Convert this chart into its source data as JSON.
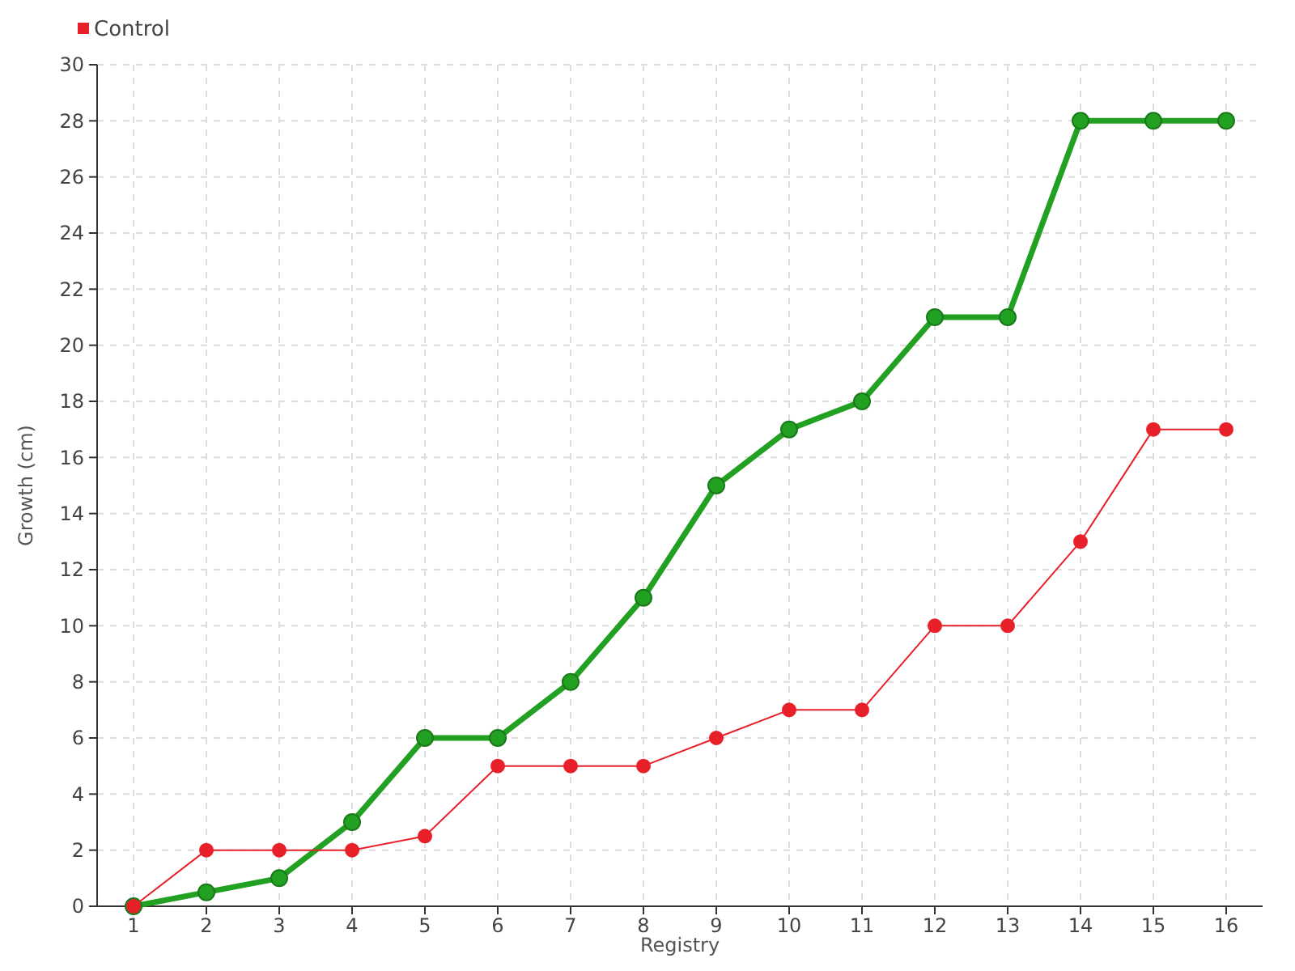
{
  "chart_data": {
    "type": "line",
    "xlabel": "Registry",
    "ylabel": "Growth (cm)",
    "categories": [
      "1",
      "2",
      "3",
      "4",
      "5",
      "6",
      "7",
      "8",
      "9",
      "10",
      "11",
      "12",
      "13",
      "14",
      "15",
      "16"
    ],
    "series": [
      {
        "color": "#22a022",
        "values": [
          0,
          0.5,
          1,
          3,
          6,
          6,
          8,
          11,
          15,
          17,
          18,
          21,
          21,
          28,
          28,
          28
        ]
      },
      {
        "name": "Control",
        "color": "#e8202a",
        "values": [
          0,
          2,
          2,
          2,
          2.5,
          5,
          5,
          5,
          6,
          7,
          7,
          10,
          10,
          13,
          17,
          17
        ]
      }
    ],
    "ylim": [
      0,
      30
    ],
    "yticks": [
      0,
      2,
      4,
      6,
      8,
      10,
      12,
      14,
      16,
      18,
      20,
      22,
      24,
      26,
      28,
      30
    ],
    "grid": true,
    "legend": "top left",
    "marker": "circle"
  }
}
